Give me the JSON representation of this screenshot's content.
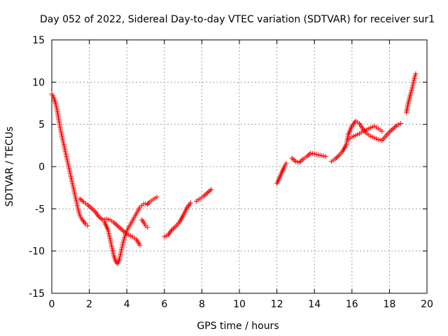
{
  "chart_data": {
    "type": "scatter",
    "title": "Day 052 of 2022, Sidereal Day-to-day VTEC variation (SDTVAR) for receiver sur1",
    "xlabel": "GPS time / hours",
    "ylabel": "SDTVAR / TECUs",
    "xlim": [
      0,
      20
    ],
    "ylim": [
      -15,
      15
    ],
    "xticks": [
      "0",
      "2",
      "4",
      "6",
      "8",
      "10",
      "12",
      "14",
      "16",
      "18",
      "20"
    ],
    "yticks": [
      "-15",
      "-10",
      "-5",
      "0",
      "5",
      "10",
      "15"
    ],
    "grid": true,
    "marker": "plus",
    "series_color": "#ff0000",
    "segments": [
      [
        [
          0.0,
          8.6
        ],
        [
          0.1,
          8.2
        ],
        [
          0.2,
          7.5
        ],
        [
          0.3,
          6.5
        ],
        [
          0.4,
          5.2
        ],
        [
          0.5,
          4.0
        ],
        [
          0.6,
          3.0
        ],
        [
          0.7,
          2.0
        ],
        [
          0.8,
          1.0
        ],
        [
          0.9,
          0.0
        ],
        [
          1.0,
          -1.0
        ],
        [
          1.1,
          -2.0
        ],
        [
          1.2,
          -3.0
        ],
        [
          1.3,
          -4.0
        ],
        [
          1.4,
          -5.0
        ],
        [
          1.5,
          -5.8
        ],
        [
          1.6,
          -6.2
        ],
        [
          1.7,
          -6.5
        ],
        [
          1.8,
          -6.8
        ],
        [
          1.9,
          -7.0
        ]
      ],
      [
        [
          1.5,
          -3.8
        ],
        [
          1.7,
          -4.2
        ],
        [
          1.9,
          -4.5
        ],
        [
          2.1,
          -4.9
        ],
        [
          2.3,
          -5.3
        ],
        [
          2.5,
          -5.9
        ],
        [
          2.7,
          -6.3
        ],
        [
          2.9,
          -6.2
        ],
        [
          3.1,
          -6.3
        ],
        [
          3.3,
          -6.6
        ],
        [
          3.5,
          -7.0
        ],
        [
          3.7,
          -7.4
        ],
        [
          3.9,
          -7.8
        ],
        [
          4.1,
          -8.1
        ],
        [
          4.3,
          -8.3
        ],
        [
          4.5,
          -8.6
        ],
        [
          4.7,
          -9.3
        ]
      ],
      [
        [
          2.8,
          -6.5
        ],
        [
          2.9,
          -7.0
        ],
        [
          3.0,
          -7.5
        ],
        [
          3.1,
          -8.5
        ],
        [
          3.2,
          -9.5
        ],
        [
          3.3,
          -10.5
        ],
        [
          3.4,
          -11.2
        ],
        [
          3.5,
          -11.5
        ],
        [
          3.6,
          -11.0
        ],
        [
          3.7,
          -10.0
        ],
        [
          3.8,
          -9.0
        ],
        [
          3.9,
          -8.2
        ],
        [
          4.0,
          -7.6
        ],
        [
          4.1,
          -7.2
        ],
        [
          4.2,
          -6.8
        ],
        [
          4.3,
          -6.4
        ],
        [
          4.4,
          -6.0
        ],
        [
          4.5,
          -5.6
        ],
        [
          4.6,
          -5.2
        ],
        [
          4.7,
          -4.8
        ],
        [
          4.8,
          -4.6
        ],
        [
          4.9,
          -4.4
        ],
        [
          5.0,
          -4.4
        ],
        [
          5.1,
          -4.5
        ],
        [
          5.2,
          -4.2
        ],
        [
          5.4,
          -3.9
        ],
        [
          5.6,
          -3.6
        ]
      ],
      [
        [
          4.8,
          -6.3
        ],
        [
          4.9,
          -6.6
        ],
        [
          5.0,
          -7.0
        ],
        [
          5.1,
          -7.2
        ]
      ],
      [
        [
          6.0,
          -8.3
        ],
        [
          6.2,
          -8.1
        ],
        [
          6.4,
          -7.5
        ],
        [
          6.6,
          -7.1
        ],
        [
          6.8,
          -6.6
        ],
        [
          7.0,
          -5.8
        ],
        [
          7.2,
          -4.9
        ],
        [
          7.4,
          -4.3
        ]
      ],
      [
        [
          7.7,
          -4.1
        ],
        [
          7.9,
          -3.8
        ],
        [
          8.1,
          -3.5
        ],
        [
          8.3,
          -3.1
        ],
        [
          8.5,
          -2.7
        ]
      ],
      [
        [
          12.0,
          -2.0
        ],
        [
          12.1,
          -1.5
        ],
        [
          12.2,
          -1.0
        ],
        [
          12.3,
          -0.5
        ],
        [
          12.4,
          0.0
        ],
        [
          12.5,
          0.4
        ]
      ],
      [
        [
          12.8,
          1.0
        ],
        [
          13.0,
          0.6
        ],
        [
          13.2,
          0.5
        ],
        [
          13.4,
          0.9
        ],
        [
          13.6,
          1.2
        ],
        [
          13.8,
          1.6
        ],
        [
          14.0,
          1.5
        ],
        [
          14.2,
          1.4
        ],
        [
          14.4,
          1.3
        ],
        [
          14.6,
          1.2
        ]
      ],
      [
        [
          14.9,
          0.6
        ],
        [
          15.1,
          0.9
        ],
        [
          15.3,
          1.3
        ],
        [
          15.5,
          1.8
        ],
        [
          15.7,
          2.6
        ],
        [
          15.8,
          3.8
        ],
        [
          16.0,
          4.8
        ],
        [
          16.2,
          5.4
        ],
        [
          16.4,
          5.1
        ],
        [
          16.6,
          4.4
        ],
        [
          16.8,
          3.9
        ],
        [
          17.0,
          3.6
        ],
        [
          17.2,
          3.4
        ],
        [
          17.4,
          3.2
        ],
        [
          17.6,
          3.1
        ],
        [
          17.8,
          3.6
        ],
        [
          18.0,
          4.1
        ],
        [
          18.2,
          4.5
        ],
        [
          18.4,
          4.9
        ],
        [
          18.6,
          5.1
        ]
      ],
      [
        [
          15.8,
          3.2
        ],
        [
          16.0,
          3.5
        ],
        [
          16.2,
          3.7
        ],
        [
          16.4,
          3.9
        ],
        [
          16.6,
          4.2
        ],
        [
          16.8,
          4.4
        ],
        [
          17.0,
          4.6
        ],
        [
          17.2,
          4.8
        ],
        [
          17.4,
          4.5
        ],
        [
          17.6,
          4.2
        ]
      ],
      [
        [
          18.9,
          6.4
        ],
        [
          19.0,
          7.5
        ],
        [
          19.1,
          8.4
        ],
        [
          19.2,
          9.2
        ],
        [
          19.3,
          10.2
        ],
        [
          19.4,
          11.0
        ]
      ]
    ]
  }
}
